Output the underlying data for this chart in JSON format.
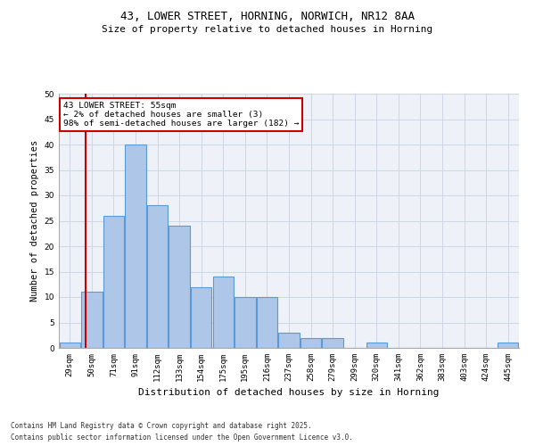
{
  "title1": "43, LOWER STREET, HORNING, NORWICH, NR12 8AA",
  "title2": "Size of property relative to detached houses in Horning",
  "xlabel": "Distribution of detached houses by size in Horning",
  "ylabel": "Number of detached properties",
  "footer1": "Contains HM Land Registry data © Crown copyright and database right 2025.",
  "footer2": "Contains public sector information licensed under the Open Government Licence v3.0.",
  "annotation_line1": "43 LOWER STREET: 55sqm",
  "annotation_line2": "← 2% of detached houses are smaller (3)",
  "annotation_line3": "98% of semi-detached houses are larger (182) →",
  "bar_labels": [
    "29sqm",
    "50sqm",
    "71sqm",
    "91sqm",
    "112sqm",
    "133sqm",
    "154sqm",
    "175sqm",
    "195sqm",
    "216sqm",
    "237sqm",
    "258sqm",
    "279sqm",
    "299sqm",
    "320sqm",
    "341sqm",
    "362sqm",
    "383sqm",
    "403sqm",
    "424sqm",
    "445sqm"
  ],
  "bar_values": [
    1,
    11,
    26,
    40,
    28,
    24,
    12,
    14,
    10,
    10,
    3,
    2,
    2,
    0,
    1,
    0,
    0,
    0,
    0,
    0,
    1
  ],
  "bar_color": "#aec6e8",
  "bar_edge_color": "#5b9bd5",
  "grid_color": "#d0d8e8",
  "background_color": "#eef2f8",
  "ylim": [
    0,
    50
  ],
  "yticks": [
    0,
    5,
    10,
    15,
    20,
    25,
    30,
    35,
    40,
    45,
    50
  ],
  "annotation_box_color": "#ffffff",
  "annotation_box_edge": "#cc0000",
  "vline_color": "#cc0000",
  "title1_fontsize": 9,
  "title2_fontsize": 8,
  "ylabel_fontsize": 7.5,
  "xlabel_fontsize": 8,
  "tick_fontsize": 6.5,
  "footer_fontsize": 5.5
}
